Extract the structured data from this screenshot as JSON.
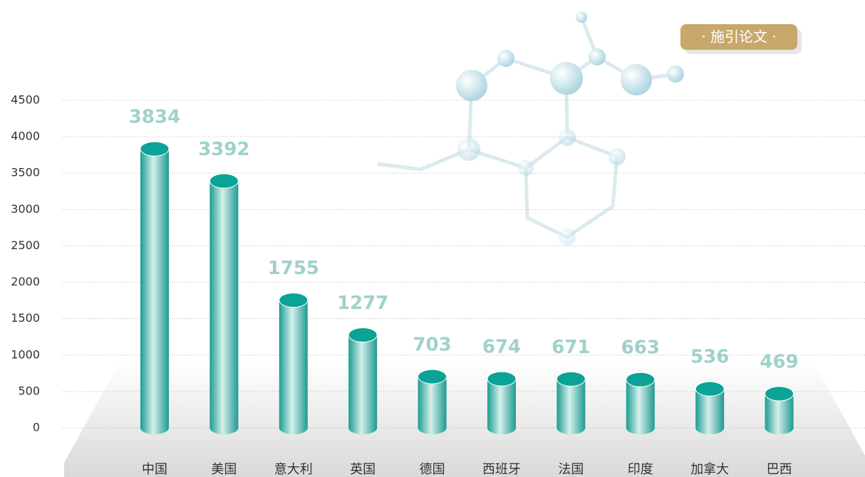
{
  "chart_data": {
    "type": "cylinder-bar",
    "badge": "· 施引论文 ·",
    "categories": [
      "中国",
      "美国",
      "意大利",
      "英国",
      "德国",
      "西班牙",
      "法国",
      "印度",
      "加拿大",
      "巴西"
    ],
    "values": [
      3834,
      3392,
      1755,
      1277,
      703,
      674,
      671,
      663,
      536,
      469
    ],
    "color": "#0aa396",
    "label_color": "#9fd1cb",
    "ylim": [
      0,
      4500
    ],
    "yticks": [
      0,
      500,
      1000,
      1500,
      2000,
      2500,
      3000,
      3500,
      4000,
      4500
    ],
    "grid": true
  }
}
